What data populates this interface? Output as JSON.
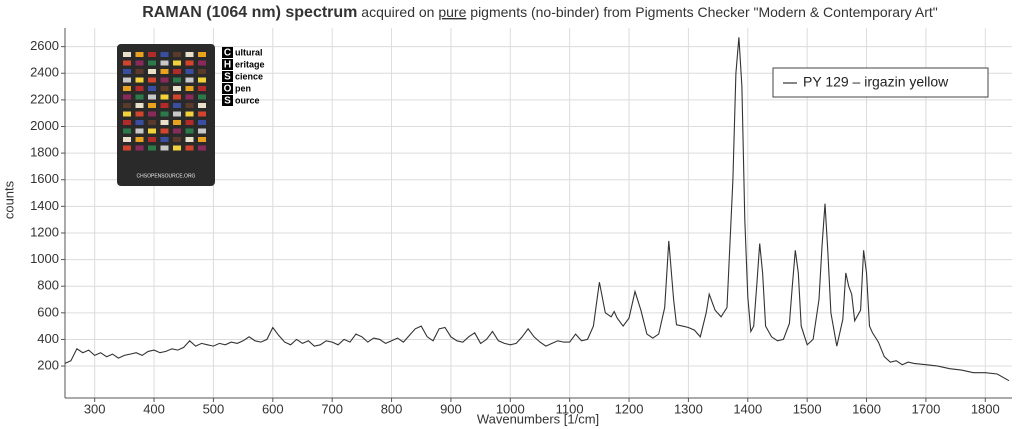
{
  "chart_data": {
    "type": "line",
    "title_bold": "RAMAN (1064 nm) spectrum",
    "title_pre": "acquired on",
    "title_underlined": "pure",
    "title_post": "pigments (no-binder) from Pigments Checker \"Modern & Contemporary Art\"",
    "xlabel": "Wavenumbers [1/cm]",
    "ylabel": "counts",
    "logo": {
      "letters": [
        "C",
        "H",
        "S",
        "O",
        "S"
      ],
      "words": [
        "ultural",
        "eritage",
        "cience",
        "pen",
        "ource"
      ]
    },
    "card_label": "CHSOPENSOURCE.ORG",
    "xlim": [
      250,
      1845
    ],
    "ylim": [
      -40,
      2740
    ],
    "xticks": [
      300,
      400,
      500,
      600,
      700,
      800,
      900,
      1000,
      1100,
      1200,
      1300,
      1400,
      1500,
      1600,
      1700,
      1800
    ],
    "yticks": [
      200,
      400,
      600,
      800,
      1000,
      1200,
      1400,
      1600,
      1800,
      2000,
      2200,
      2400,
      2600
    ],
    "grid": true,
    "legend": "upper right",
    "x": [
      250,
      260,
      270,
      280,
      290,
      300,
      310,
      320,
      330,
      340,
      350,
      360,
      370,
      380,
      390,
      400,
      410,
      420,
      430,
      440,
      450,
      460,
      470,
      480,
      490,
      500,
      510,
      520,
      530,
      540,
      550,
      560,
      570,
      580,
      590,
      600,
      610,
      620,
      630,
      640,
      650,
      660,
      670,
      680,
      690,
      700,
      710,
      720,
      730,
      740,
      750,
      760,
      770,
      780,
      790,
      800,
      810,
      820,
      830,
      840,
      850,
      860,
      870,
      880,
      890,
      900,
      910,
      920,
      930,
      940,
      950,
      960,
      970,
      980,
      990,
      1000,
      1010,
      1020,
      1030,
      1040,
      1050,
      1060,
      1070,
      1080,
      1090,
      1100,
      1110,
      1120,
      1130,
      1140,
      1150,
      1160,
      1170,
      1175,
      1180,
      1190,
      1200,
      1210,
      1220,
      1230,
      1240,
      1250,
      1260,
      1267,
      1275,
      1280,
      1290,
      1300,
      1310,
      1320,
      1330,
      1335,
      1345,
      1355,
      1365,
      1375,
      1380,
      1385,
      1390,
      1395,
      1400,
      1405,
      1410,
      1415,
      1420,
      1425,
      1430,
      1440,
      1450,
      1460,
      1470,
      1475,
      1480,
      1485,
      1490,
      1500,
      1510,
      1520,
      1525,
      1530,
      1535,
      1540,
      1550,
      1560,
      1565,
      1570,
      1575,
      1580,
      1590,
      1595,
      1600,
      1605,
      1610,
      1620,
      1630,
      1640,
      1650,
      1660,
      1670,
      1680,
      1700,
      1720,
      1740,
      1760,
      1780,
      1800,
      1820,
      1840
    ],
    "series": [
      {
        "name": "PY 129 – irgazin yellow",
        "color": "#333333",
        "values": [
          220,
          240,
          330,
          300,
          320,
          280,
          300,
          270,
          290,
          260,
          280,
          290,
          300,
          280,
          310,
          320,
          300,
          310,
          330,
          320,
          340,
          390,
          350,
          370,
          360,
          350,
          370,
          360,
          380,
          370,
          390,
          420,
          390,
          380,
          400,
          490,
          430,
          380,
          360,
          400,
          370,
          390,
          350,
          360,
          390,
          380,
          360,
          400,
          380,
          440,
          420,
          380,
          410,
          400,
          370,
          390,
          410,
          380,
          430,
          480,
          500,
          420,
          390,
          480,
          490,
          420,
          390,
          380,
          420,
          450,
          370,
          400,
          460,
          390,
          370,
          360,
          370,
          420,
          480,
          420,
          380,
          350,
          370,
          390,
          380,
          380,
          440,
          390,
          400,
          500,
          830,
          600,
          570,
          610,
          560,
          500,
          560,
          760,
          620,
          440,
          410,
          440,
          640,
          1140,
          700,
          510,
          500,
          490,
          470,
          420,
          600,
          740,
          620,
          570,
          640,
          1600,
          2400,
          2670,
          2300,
          1300,
          720,
          460,
          500,
          800,
          1120,
          900,
          500,
          420,
          390,
          400,
          520,
          800,
          1070,
          900,
          500,
          360,
          400,
          700,
          1100,
          1420,
          1050,
          600,
          350,
          550,
          900,
          800,
          740,
          540,
          620,
          1070,
          900,
          500,
          450,
          380,
          270,
          230,
          240,
          210,
          230,
          220,
          210,
          200,
          180,
          170,
          150,
          150,
          140,
          90
        ]
      }
    ]
  }
}
